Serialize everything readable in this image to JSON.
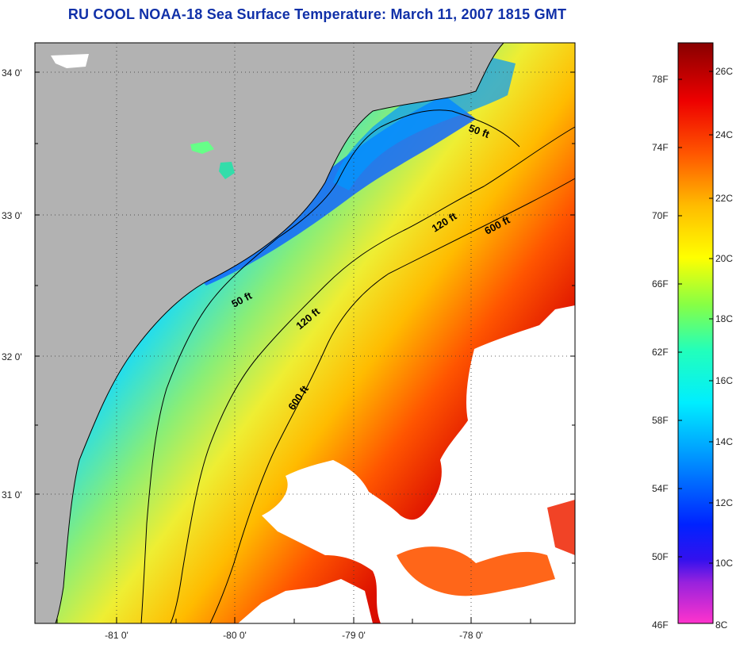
{
  "title": "RU COOL  NOAA-18  Sea Surface Temperature:  March 11, 2007 1815 GMT",
  "latitude_labels": [
    "34 0'",
    "33 0'",
    "32 0'",
    "31 0'"
  ],
  "longitude_labels": [
    "-81 0'",
    "-80 0'",
    "-79 0'",
    "-78 0'"
  ],
  "contour_labels": {
    "c50_north": "50 ft",
    "c50_south": "50 ft",
    "c120_north": "120 ft",
    "c120_south": "120 ft",
    "c600_north": "600 ft",
    "c600_south": "600 ft"
  },
  "colorbar": {
    "fahrenheit_labels": [
      "78F",
      "74F",
      "70F",
      "66F",
      "62F",
      "58F",
      "54F",
      "50F",
      "46F"
    ],
    "celsius_labels": [
      "26C",
      "24C",
      "22C",
      "20C",
      "18C",
      "16C",
      "14C",
      "12C",
      "10C",
      "8C"
    ]
  },
  "colors": {
    "land": "#b2b2b2",
    "cloud": "#ffffff",
    "title": "#1030a8",
    "scale": [
      "#ff33cc",
      "#7722cc",
      "#0000ee",
      "#0066ff",
      "#00ccff",
      "#00ffcc",
      "#66ff66",
      "#ffff00",
      "#ffaa00",
      "#ff4400",
      "#dd0000",
      "#880000"
    ]
  }
}
